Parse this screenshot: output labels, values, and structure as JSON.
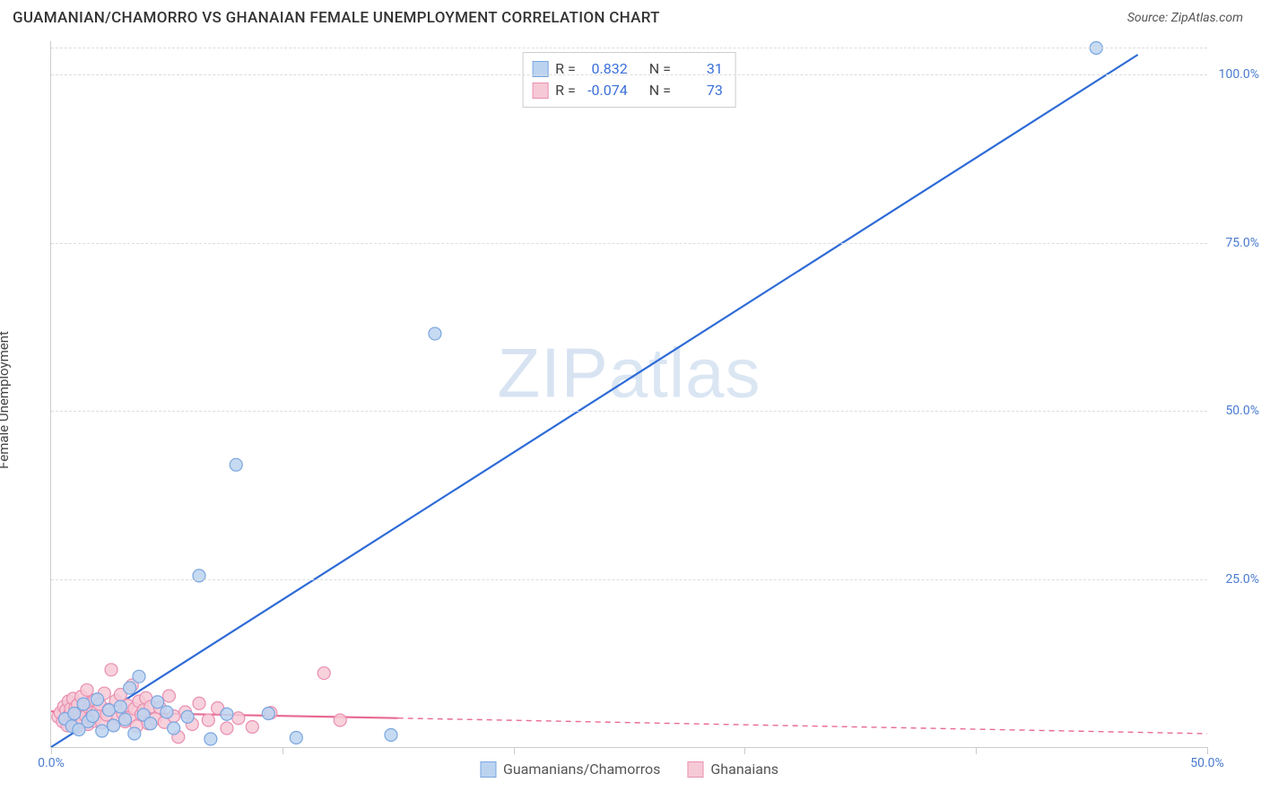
{
  "title": "GUAMANIAN/CHAMORRO VS GHANAIAN FEMALE UNEMPLOYMENT CORRELATION CHART",
  "source": "Source: ZipAtlas.com",
  "watermark": "ZIPatlas",
  "y_axis_label": "Female Unemployment",
  "chart": {
    "type": "scatter",
    "xlim": [
      0,
      50
    ],
    "ylim": [
      0,
      105
    ],
    "x_ticks": [
      0,
      10,
      20,
      30,
      40,
      50
    ],
    "x_tick_labels": [
      "0.0%",
      "",
      "",
      "",
      "",
      "50.0%"
    ],
    "y_ticks": [
      25,
      50,
      75,
      100
    ],
    "y_tick_labels": [
      "25.0%",
      "50.0%",
      "75.0%",
      "100.0%"
    ],
    "grid_color": "#dddddd",
    "axis_color": "#cccccc",
    "background": "#ffffff",
    "marker_radius": 7,
    "marker_stroke_width": 1.2,
    "series": [
      {
        "name": "Guamanians/Chamorros",
        "color_fill": "#bcd3f0",
        "color_stroke": "#7aa6e0",
        "line_color": "#2e6bd6",
        "line_dash": null,
        "R": "0.832",
        "N": "31",
        "trend": {
          "x1": 0,
          "y1": 0,
          "x2": 47,
          "y2": 103
        },
        "points": [
          [
            0.6,
            4.2
          ],
          [
            0.9,
            3.1
          ],
          [
            1.0,
            5.0
          ],
          [
            1.2,
            2.6
          ],
          [
            1.4,
            6.4
          ],
          [
            1.6,
            3.8
          ],
          [
            1.8,
            4.6
          ],
          [
            2.0,
            7.1
          ],
          [
            2.2,
            2.4
          ],
          [
            2.5,
            5.5
          ],
          [
            2.7,
            3.2
          ],
          [
            3.0,
            6.0
          ],
          [
            3.2,
            4.1
          ],
          [
            3.4,
            8.8
          ],
          [
            3.6,
            2.0
          ],
          [
            3.8,
            10.5
          ],
          [
            4.0,
            4.8
          ],
          [
            4.3,
            3.5
          ],
          [
            4.6,
            6.7
          ],
          [
            5.0,
            5.2
          ],
          [
            5.3,
            2.8
          ],
          [
            5.9,
            4.5
          ],
          [
            6.4,
            25.5
          ],
          [
            6.9,
            1.2
          ],
          [
            7.6,
            4.9
          ],
          [
            8.0,
            42.0
          ],
          [
            9.4,
            5.0
          ],
          [
            10.6,
            1.4
          ],
          [
            14.7,
            1.8
          ],
          [
            16.6,
            61.5
          ],
          [
            45.2,
            104.0
          ]
        ]
      },
      {
        "name": "Ghanaians",
        "color_fill": "#f6c9d6",
        "color_stroke": "#e98fb0",
        "line_color": "#e86b92",
        "line_dash": "6,5",
        "R": "-0.074",
        "N": "73",
        "trend": {
          "x1": 0,
          "y1": 5.3,
          "x2": 50,
          "y2": 2.0
        },
        "trend_solid_until_x": 15,
        "points": [
          [
            0.3,
            4.5
          ],
          [
            0.4,
            5.1
          ],
          [
            0.5,
            3.8
          ],
          [
            0.55,
            6.0
          ],
          [
            0.6,
            4.2
          ],
          [
            0.65,
            5.5
          ],
          [
            0.7,
            3.2
          ],
          [
            0.75,
            6.8
          ],
          [
            0.8,
            4.9
          ],
          [
            0.85,
            5.7
          ],
          [
            0.9,
            3.5
          ],
          [
            0.95,
            7.2
          ],
          [
            1.0,
            4.4
          ],
          [
            1.05,
            5.9
          ],
          [
            1.1,
            3.0
          ],
          [
            1.15,
            6.3
          ],
          [
            1.2,
            5.0
          ],
          [
            1.25,
            4.1
          ],
          [
            1.3,
            7.5
          ],
          [
            1.35,
            3.7
          ],
          [
            1.4,
            5.4
          ],
          [
            1.45,
            6.1
          ],
          [
            1.5,
            4.6
          ],
          [
            1.55,
            8.5
          ],
          [
            1.6,
            3.4
          ],
          [
            1.65,
            5.8
          ],
          [
            1.7,
            4.3
          ],
          [
            1.75,
            6.6
          ],
          [
            1.8,
            5.1
          ],
          [
            1.85,
            3.9
          ],
          [
            1.9,
            7.0
          ],
          [
            1.95,
            4.7
          ],
          [
            2.0,
            5.3
          ],
          [
            2.1,
            6.4
          ],
          [
            2.2,
            3.6
          ],
          [
            2.3,
            8.0
          ],
          [
            2.4,
            4.8
          ],
          [
            2.5,
            5.6
          ],
          [
            2.6,
            11.5
          ],
          [
            2.7,
            3.3
          ],
          [
            2.8,
            6.9
          ],
          [
            2.9,
            4.5
          ],
          [
            3.0,
            7.8
          ],
          [
            3.1,
            5.0
          ],
          [
            3.2,
            3.8
          ],
          [
            3.3,
            6.2
          ],
          [
            3.4,
            4.4
          ],
          [
            3.5,
            9.2
          ],
          [
            3.6,
            5.7
          ],
          [
            3.7,
            3.1
          ],
          [
            3.8,
            6.8
          ],
          [
            3.9,
            4.9
          ],
          [
            4.0,
            5.5
          ],
          [
            4.1,
            7.3
          ],
          [
            4.2,
            3.5
          ],
          [
            4.3,
            6.0
          ],
          [
            4.5,
            4.2
          ],
          [
            4.7,
            5.9
          ],
          [
            4.9,
            3.7
          ],
          [
            5.1,
            7.6
          ],
          [
            5.3,
            4.6
          ],
          [
            5.5,
            1.5
          ],
          [
            5.8,
            5.2
          ],
          [
            6.1,
            3.4
          ],
          [
            6.4,
            6.5
          ],
          [
            6.8,
            4.0
          ],
          [
            7.2,
            5.8
          ],
          [
            7.6,
            2.8
          ],
          [
            8.1,
            4.3
          ],
          [
            8.7,
            3.0
          ],
          [
            9.5,
            5.1
          ],
          [
            11.8,
            11.0
          ],
          [
            12.5,
            4.0
          ]
        ]
      }
    ]
  },
  "legend": {
    "series1_label": "Guamanians/Chamorros",
    "series2_label": "Ghanaians"
  },
  "stats_labels": {
    "R": "R  =",
    "N": "N  ="
  }
}
